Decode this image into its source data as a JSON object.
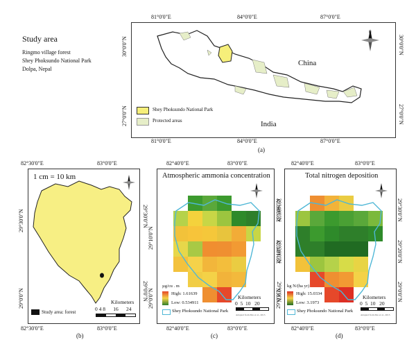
{
  "side_info": {
    "heading": "Study area",
    "line1": "Ringmo village forest",
    "line2": "Shey Phoksundo National Park",
    "line3": "Dolpa, Nepal"
  },
  "panel_a": {
    "caption": "(a)",
    "top_coords": [
      "81°0'0\"E",
      "84°0'0\"E",
      "87°0'0\"E"
    ],
    "bottom_coords": [
      "81°0'0\"E",
      "84°0'0\"E",
      "87°0'0\"E"
    ],
    "left_coords": [
      "30°0'0\"N",
      "27°0'0\"N"
    ],
    "right_coords": [
      "30°0'0\"N",
      "27°0'0\"N"
    ],
    "label_china": "China",
    "label_india": "India",
    "legend": [
      "Shey Phoksundo National Park",
      "Protected areas"
    ],
    "colors": {
      "park": "#f6ef7a",
      "protected": "#e6eec8"
    }
  },
  "panel_b": {
    "caption": "(b)",
    "scale_text": "1 cm = 10 km",
    "top_coords": [
      "82°30'0\"E",
      "83°0'0\"E"
    ],
    "bottom_coords": [
      "82°30'0\"E",
      "83°0'0\"E"
    ],
    "left_coords": [
      "29°30'0\"N",
      "29°0'0\"N"
    ],
    "right_coords": [
      "29°30'0\"N",
      "29°0'0\"N"
    ],
    "legend": "Study area: forest",
    "scalebar_title": "Kilometers",
    "scalebar_ticks": "0 4 8      16      24",
    "colors": {
      "park": "#f7ef84"
    }
  },
  "panel_c": {
    "caption": "(c)",
    "title": "Atmospheric ammonia concentration",
    "top_coords": [
      "82°40'0\"E",
      "83°0'0\"E"
    ],
    "bottom_coords": [
      "82°40'0\"E",
      "83°0'0\"E"
    ],
    "left_coords": [
      "29°10'0\"N",
      "29°0'0\"N"
    ],
    "right_coords": [
      "29°40'0\"N",
      "29°20'0\"N",
      "29°0'0\"N"
    ],
    "unit": "µg/cu . m",
    "high": "High: 1.61639",
    "low": "Low: 0.534911",
    "legend": "Shey Phoksundo National Park",
    "scalebar_title": "Kilometers",
    "scalebar_ticks": "0  5  10   20",
    "source": "Adapted from Zhu et al., 2015",
    "grid": [
      [
        "",
        "#3c9a2e",
        "#5aa83a",
        "#3c9a2e",
        "",
        ""
      ],
      [
        "#b5d24a",
        "#f4d23c",
        "#c8d646",
        "#9cc53f",
        "#2e8a2a",
        "#2e7f2a"
      ],
      [
        "#f2c23a",
        "#f7c43a",
        "#f5c73a",
        "#e8c43d",
        "#f2ac37",
        "#c8d646"
      ],
      [
        "#e7d74a",
        "#a8c945",
        "#f08e30",
        "#ef8f31",
        "#f29a33",
        ""
      ],
      [
        "#f3c23d",
        "#f5d24a",
        "#f2b63b",
        "#f3be3c",
        "#eacc42",
        ""
      ],
      [
        "",
        "#f1cd45",
        "#f4d247",
        "#f2b33a",
        "#f3b93c",
        ""
      ],
      [
        "",
        "",
        "#ef8f31",
        "#e6482a",
        "",
        ""
      ]
    ]
  },
  "panel_d": {
    "caption": "(d)",
    "title": "Total nitrogen deposition",
    "top_coords": [
      "82°40'0\"E",
      "83°0'0\"E"
    ],
    "bottom_coords": [
      "82°40'0\"E",
      "83°0'0\"E"
    ],
    "left_coords": [
      "29°30'0\"N",
      "29°10'0\"N",
      "29°0'0\"N"
    ],
    "right_coords": [
      "29°30'0\"N",
      "29°20'0\"N",
      "29°0'0\"N"
    ],
    "unit": "kg N/(ha yr)",
    "high": "High: 15.0334",
    "low": "Low: 3.1973",
    "legend": "Shey Phoksundo National Park",
    "scalebar_title": "Kilometers",
    "scalebar_ticks": "0  5  10   20",
    "source": "Adapted from Zhu et al., 2015",
    "grid": [
      [
        "",
        "#ef8f31",
        "#f2b33a",
        "#eacc42",
        "",
        ""
      ],
      [
        "#9cc53f",
        "#5aa83a",
        "#3c9a2e",
        "#4aa034",
        "#5aa83a",
        "#7bb93c"
      ],
      [
        "#2e7f2a",
        "#3c9a2e",
        "#2e8a2a",
        "#2e7f2a",
        "#2e7f2a",
        "#2e8a2a"
      ],
      [
        "#2e7f2a",
        "#2e7f2a",
        "#206b22",
        "#206b22",
        "#206b22",
        ""
      ],
      [
        "#f2c23a",
        "#9cc53f",
        "#b5d24a",
        "#d7dc48",
        "#e8d444",
        ""
      ],
      [
        "",
        "#e6482a",
        "#ef8f31",
        "#f29a33",
        "#f4d247",
        ""
      ],
      [
        "",
        "",
        "#e6482a",
        "#dd2f24",
        "",
        ""
      ]
    ]
  }
}
